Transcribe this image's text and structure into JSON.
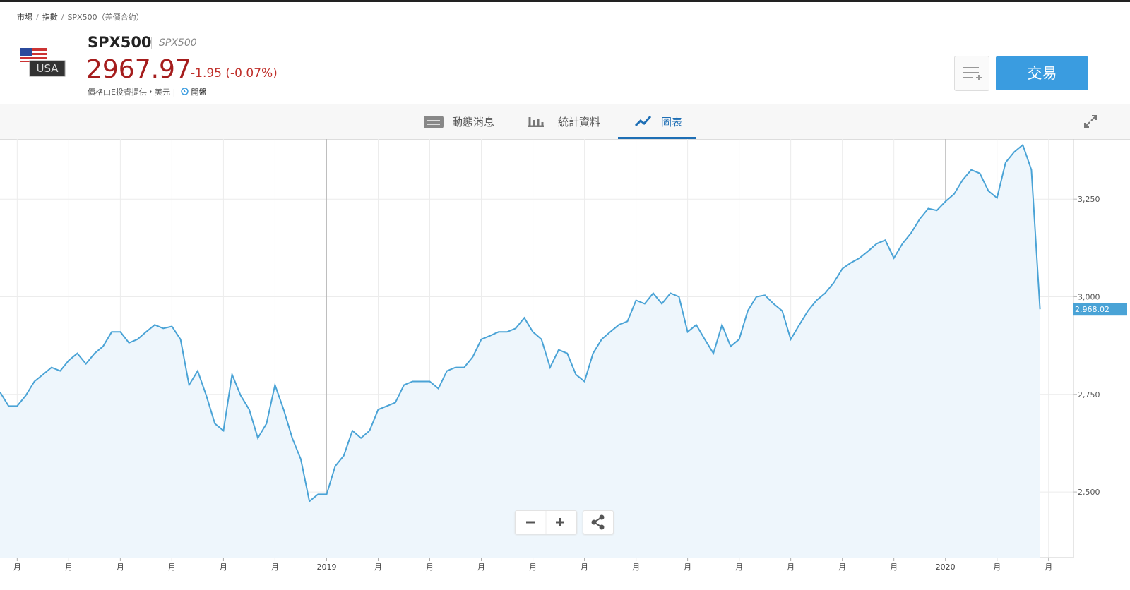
{
  "breadcrumb": [
    "市場",
    "指數",
    "SPX500（差價合約）"
  ],
  "header": {
    "flag_text": "USA",
    "symbol": "SPX500",
    "symbol_sub": "SPX500",
    "price": "2967.97",
    "change": "-1.95 (-0.07%)",
    "source": "價格由E投睿提供，美元",
    "status": "開盤",
    "trade_button": "交易"
  },
  "tabs": [
    "動態消息",
    "統計資料",
    "圖表"
  ],
  "chart_data": {
    "type": "line",
    "categories": [
      null,
      null,
      "月",
      null,
      null,
      null,
      null,
      null,
      "月",
      null,
      null,
      null,
      null,
      null,
      "月",
      null,
      null,
      null,
      null,
      null,
      "月",
      null,
      null,
      null,
      null,
      null,
      "月",
      null,
      null,
      null,
      null,
      null,
      "月",
      null,
      null,
      null,
      null,
      null,
      "2019",
      null,
      null,
      null,
      null,
      null,
      "月",
      null,
      null,
      null,
      null,
      null,
      "月",
      null,
      null,
      null,
      null,
      null,
      "月",
      null,
      null,
      null,
      null,
      null,
      "月",
      null,
      null,
      null,
      null,
      null,
      "月",
      null,
      null,
      null,
      null,
      null,
      "月",
      null,
      null,
      null,
      null,
      null,
      "月",
      null,
      null,
      null,
      null,
      null,
      "月",
      null,
      null,
      null,
      null,
      null,
      "月",
      null,
      null,
      null,
      null,
      null,
      "月",
      null,
      null,
      null,
      null,
      null,
      "月",
      null,
      null,
      null,
      null,
      null,
      "2020",
      null,
      null,
      null,
      null,
      null,
      "月",
      null,
      null,
      null,
      null,
      null,
      "月"
    ],
    "series": [
      {
        "name": "SPX500",
        "color": "#4aa3d6",
        "values": [
          2756,
          2720,
          2720,
          2747,
          2783,
          2801,
          2819,
          2810,
          2837,
          2855,
          2828,
          2855,
          2873,
          2910,
          2910,
          2882,
          2891,
          2910,
          2928,
          2919,
          2924,
          2891,
          2774,
          2810,
          2747,
          2675,
          2657,
          2801,
          2747,
          2711,
          2638,
          2675,
          2774,
          2711,
          2638,
          2584,
          2476,
          2494,
          2494,
          2566,
          2593,
          2657,
          2638,
          2657,
          2711,
          2720,
          2729,
          2774,
          2783,
          2783,
          2783,
          2765,
          2810,
          2819,
          2819,
          2846,
          2891,
          2900,
          2910,
          2910,
          2919,
          2946,
          2910,
          2891,
          2819,
          2864,
          2855,
          2801,
          2783,
          2855,
          2891,
          2910,
          2928,
          2937,
          2991,
          2982,
          3009,
          2982,
          3009,
          3000,
          2910,
          2928,
          2891,
          2855,
          2928,
          2873,
          2891,
          2964,
          3000,
          3004,
          2982,
          2964,
          2891,
          2928,
          2964,
          2991,
          3009,
          3036,
          3072,
          3087,
          3099,
          3117,
          3136,
          3145,
          3099,
          3136,
          3163,
          3199,
          3226,
          3221,
          3244,
          3263,
          3299,
          3325,
          3316,
          3271,
          3253,
          3344,
          3371,
          3389,
          3325,
          2968.02,
          null
        ],
        "value_labels": [
          null,
          null,
          null,
          null,
          null,
          null,
          null,
          null,
          null,
          null,
          null,
          null,
          null,
          null,
          null,
          null,
          null,
          null,
          null,
          null,
          null,
          null,
          null,
          null,
          null,
          null,
          null,
          null,
          null,
          null,
          null,
          null,
          null,
          null,
          null,
          null,
          null,
          null,
          null,
          null,
          null,
          null,
          null,
          null,
          null,
          null,
          null,
          null,
          null,
          null,
          null,
          null,
          null,
          null,
          null,
          null,
          null,
          null,
          null,
          null,
          null,
          null,
          null,
          null,
          null,
          null,
          null,
          null,
          null,
          null,
          null,
          null,
          null,
          null,
          null,
          null,
          null,
          null,
          null,
          null,
          null,
          null,
          null,
          null,
          null,
          null,
          null,
          null,
          null,
          null,
          null,
          null,
          null,
          null,
          null,
          null,
          null,
          null,
          null,
          null,
          null,
          null,
          null,
          null,
          null,
          null,
          null,
          null,
          null,
          null,
          null,
          null,
          null,
          null,
          null,
          null,
          null,
          null,
          null,
          null,
          null,
          "2,968.02",
          null
        ]
      }
    ],
    "ylim": [
      2332,
      3404
    ],
    "yticks": [
      {
        "value": 2500,
        "label": "2,500"
      },
      {
        "value": 2750,
        "label": "2,750"
      },
      {
        "value": 3000,
        "label": "3,000"
      },
      {
        "value": 3250,
        "label": "3,250"
      }
    ],
    "grid": true
  }
}
